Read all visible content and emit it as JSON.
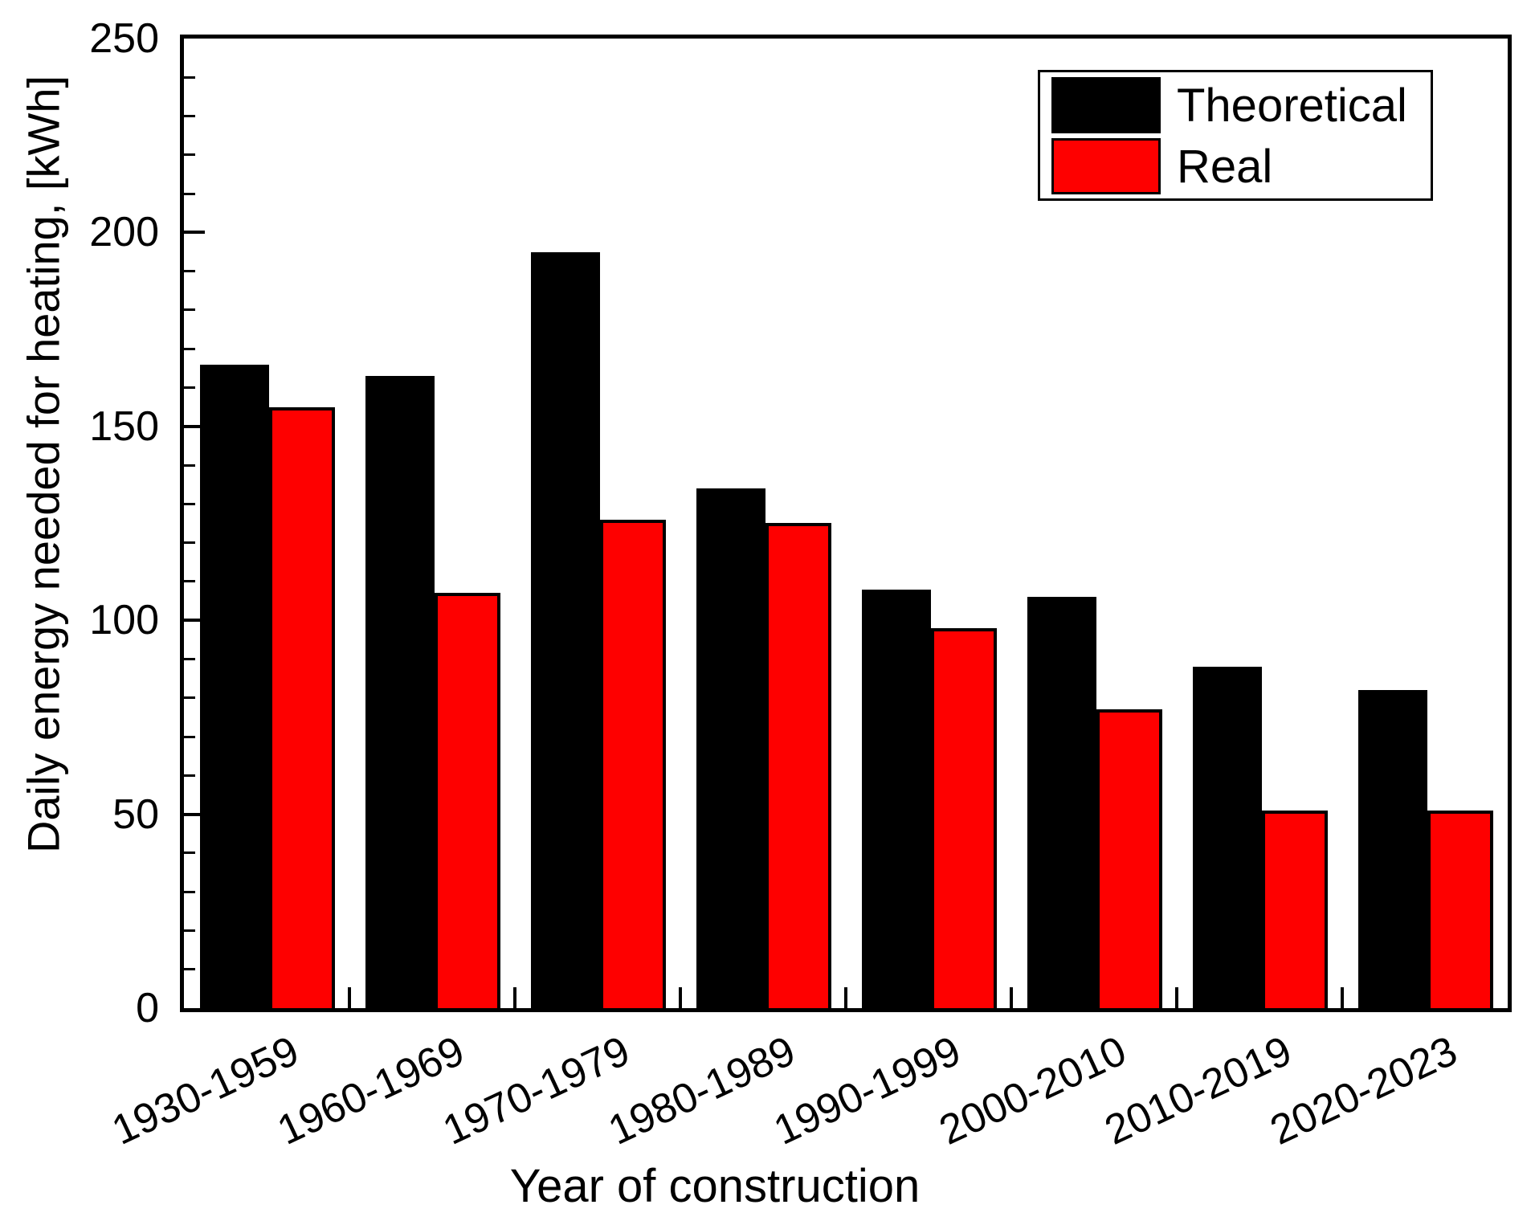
{
  "chart_data": {
    "type": "bar",
    "title": "",
    "xlabel": "Year of construction",
    "ylabel": "Daily energy needed for heating, [kWh]",
    "categories": [
      "1930-1959",
      "1960-1969",
      "1970-1979",
      "1980-1989",
      "1990-1999",
      "2000-2010",
      "2010-2019",
      "2020-2023"
    ],
    "series": [
      {
        "name": "Theoretical",
        "color": "#000000",
        "values": [
          166,
          163,
          195,
          134,
          108,
          106,
          88,
          82
        ]
      },
      {
        "name": "Real",
        "color": "#fe0000",
        "values": [
          155,
          107,
          126,
          125,
          98,
          77,
          51,
          51
        ]
      }
    ],
    "ylim": [
      0,
      250
    ],
    "y_tick_labels": [
      "0",
      "50",
      "100",
      "150",
      "200",
      "250"
    ],
    "y_major_tick_step": 50,
    "y_minor_tick_step": 10,
    "grid": false,
    "legend_position": "top-right",
    "bar_outline_color": "#000000"
  }
}
